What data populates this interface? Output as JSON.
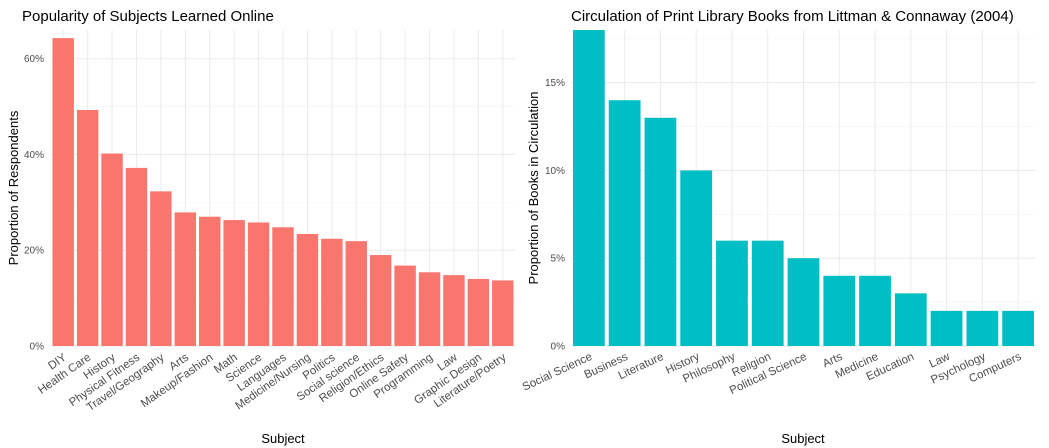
{
  "chart_data": [
    {
      "type": "bar",
      "title": "Popularity of Subjects Learned Online",
      "xlabel": "Subject",
      "ylabel": "Proportion of Respondents",
      "color": "#F8766D",
      "ylim": [
        0,
        0.66
      ],
      "yticks": [
        0,
        0.2,
        0.4,
        0.6
      ],
      "ytick_labels": [
        "0%",
        "20%",
        "40%",
        "60%"
      ],
      "grid": true,
      "categories": [
        "DIY",
        "Health Care",
        "History",
        "Physical Fitness",
        "Travel/Geography",
        "Arts",
        "Makeup/Fashion",
        "Math",
        "Science",
        "Languages",
        "Medicine/Nursing",
        "Politics",
        "Social science",
        "Religion/Ethics",
        "Online Safety",
        "Programming",
        "Law",
        "Graphic Design",
        "Literature/Poetry"
      ],
      "values": [
        0.643,
        0.493,
        0.402,
        0.372,
        0.323,
        0.279,
        0.27,
        0.263,
        0.258,
        0.248,
        0.234,
        0.224,
        0.219,
        0.19,
        0.168,
        0.154,
        0.148,
        0.14,
        0.137
      ]
    },
    {
      "type": "bar",
      "title": "Circulation of Print Library Books from Littman & Connaway (2004)",
      "xlabel": "Subject",
      "ylabel": "Proportion of Books in Circulation",
      "color": "#00BFC4",
      "ylim": [
        0,
        0.18
      ],
      "yticks": [
        0,
        0.05,
        0.1,
        0.15
      ],
      "ytick_labels": [
        "0%",
        "5%",
        "10%",
        "15%"
      ],
      "grid": true,
      "categories": [
        "Social Science",
        "Business",
        "Literature",
        "History",
        "Philosophy",
        "Religion",
        "Political Science",
        "Arts",
        "Medicine",
        "Education",
        "Law",
        "Psychology",
        "Computers"
      ],
      "values": [
        0.18,
        0.14,
        0.13,
        0.1,
        0.06,
        0.06,
        0.05,
        0.04,
        0.04,
        0.03,
        0.02,
        0.02,
        0.02
      ]
    }
  ]
}
